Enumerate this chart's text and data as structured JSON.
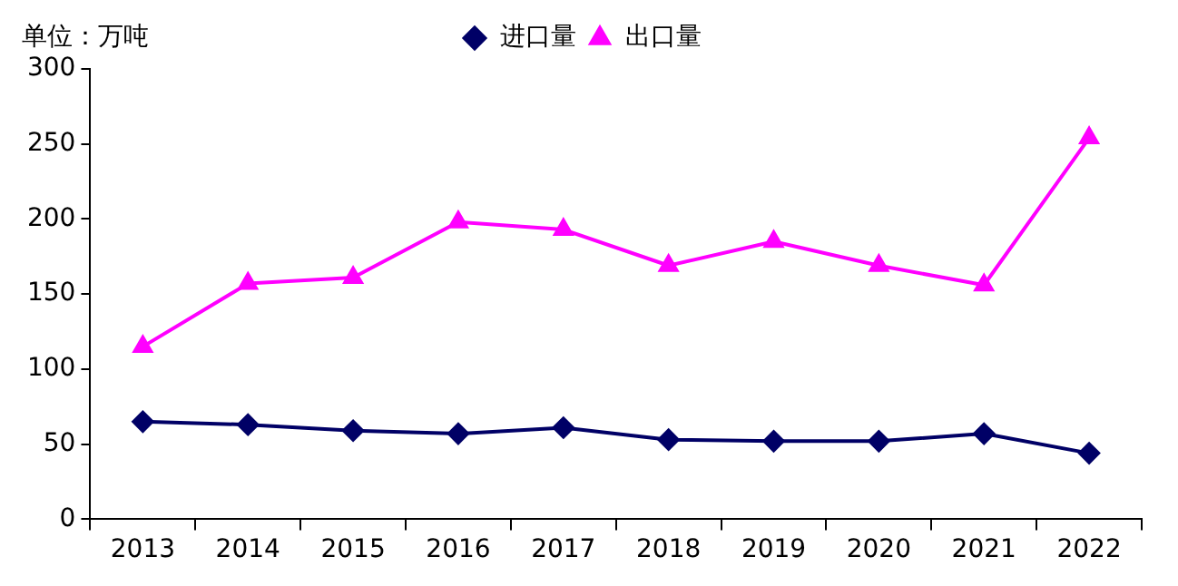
{
  "chart_data": {
    "type": "line",
    "ylabel": "单位：万吨",
    "categories": [
      "2013",
      "2014",
      "2015",
      "2016",
      "2017",
      "2018",
      "2019",
      "2020",
      "2021",
      "2022"
    ],
    "series": [
      {
        "name": "进口量",
        "color": "#000066",
        "marker": "diamond",
        "values": [
          65,
          63,
          59,
          57,
          61,
          53,
          52,
          52,
          57,
          44
        ]
      },
      {
        "name": "出口量",
        "color": "#ff00ff",
        "marker": "triangle",
        "values": [
          115,
          157,
          161,
          198,
          193,
          169,
          185,
          169,
          156,
          254
        ]
      }
    ],
    "ylim": [
      0,
      300
    ],
    "yticks": [
      0,
      50,
      100,
      150,
      200,
      250,
      300
    ],
    "grid": false,
    "legend": "top",
    "line_style": "solid"
  }
}
